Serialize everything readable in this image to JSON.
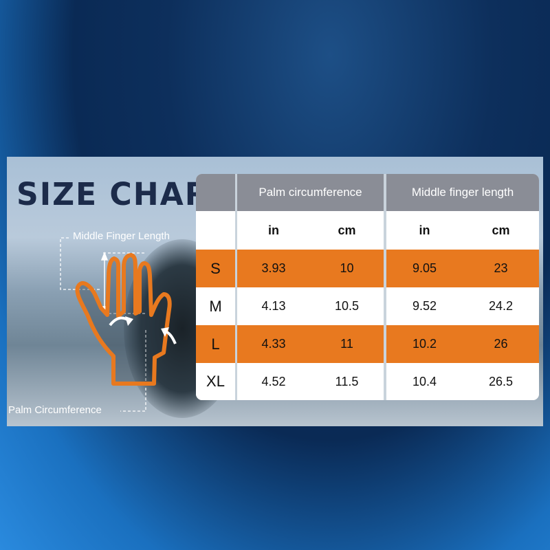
{
  "title": "SIZE CHART",
  "labels": {
    "middle_finger": "Middle Finger Length",
    "palm": "Palm Circumference"
  },
  "colors": {
    "accent": "#e8791f",
    "header": "#8a8d96",
    "title": "#1c2b4a"
  },
  "table": {
    "groups": [
      "Palm circumference",
      "Middle finger length"
    ],
    "units": [
      "in",
      "cm",
      "in",
      "cm"
    ],
    "rows": [
      {
        "size": "S",
        "palm_in": "3.93",
        "palm_cm": "10",
        "finger_in": "9.05",
        "finger_cm": "23"
      },
      {
        "size": "M",
        "palm_in": "4.13",
        "palm_cm": "10.5",
        "finger_in": "9.52",
        "finger_cm": "24.2"
      },
      {
        "size": "L",
        "palm_in": "4.33",
        "palm_cm": "11",
        "finger_in": "10.2",
        "finger_cm": "26"
      },
      {
        "size": "XL",
        "palm_in": "4.52",
        "palm_cm": "11.5",
        "finger_in": "10.4",
        "finger_cm": "26.5"
      }
    ]
  }
}
